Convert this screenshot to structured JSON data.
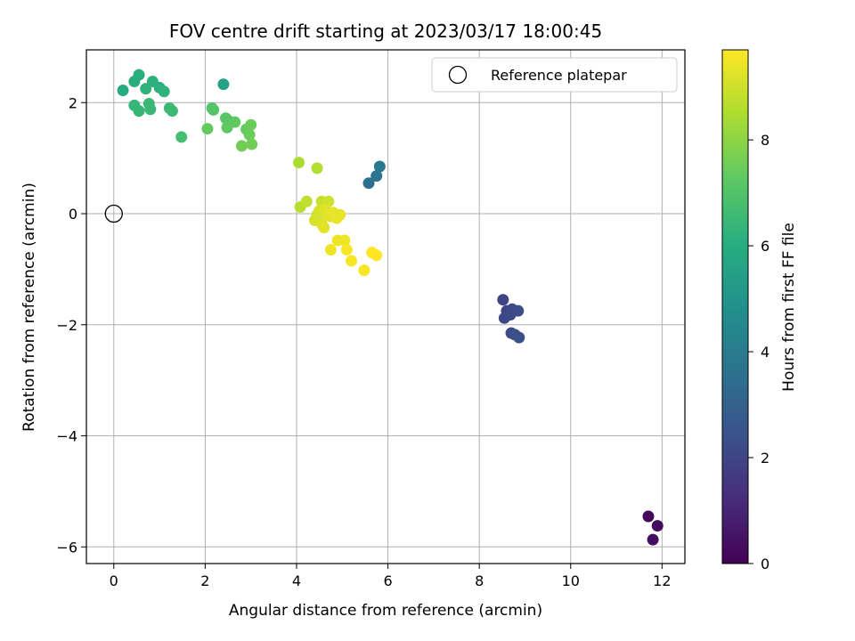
{
  "chart_data": {
    "type": "scatter",
    "title": "FOV centre drift starting at 2023/03/17 18:00:45",
    "xlabel": "Angular distance from reference (arcmin)",
    "ylabel": "Rotation from reference (arcmin)",
    "xlim": [
      -0.6,
      12.5
    ],
    "ylim": [
      -6.3,
      2.95
    ],
    "xticks": [
      0,
      2,
      4,
      6,
      8,
      10,
      12
    ],
    "yticks": [
      2,
      0,
      -2,
      -4,
      -6
    ],
    "xtick_labels": [
      "0",
      "2",
      "4",
      "6",
      "8",
      "10",
      "12"
    ],
    "ytick_labels": [
      "2",
      "0",
      "−2",
      "−4",
      "−6"
    ],
    "grid": true,
    "legend": {
      "position": "top-right",
      "label": "Reference platepar"
    },
    "reference_point": {
      "x": 0,
      "y": 0
    },
    "colorbar": {
      "label": "Hours from first FF file",
      "range": [
        0,
        9.7
      ],
      "ticks": [
        0,
        2,
        4,
        6,
        8
      ],
      "tick_labels": [
        "0",
        "2",
        "4",
        "6",
        "8"
      ],
      "colormap": "viridis"
    },
    "points": [
      {
        "x": 11.7,
        "y": -5.45,
        "c": 0.2
      },
      {
        "x": 11.9,
        "y": -5.62,
        "c": 0.3
      },
      {
        "x": 11.8,
        "y": -5.87,
        "c": 0.4
      },
      {
        "x": 8.52,
        "y": -1.55,
        "c": 2.0
      },
      {
        "x": 8.6,
        "y": -1.75,
        "c": 2.1
      },
      {
        "x": 8.55,
        "y": -1.88,
        "c": 2.1
      },
      {
        "x": 8.72,
        "y": -1.72,
        "c": 2.2
      },
      {
        "x": 8.68,
        "y": -1.82,
        "c": 2.2
      },
      {
        "x": 8.85,
        "y": -1.75,
        "c": 2.3
      },
      {
        "x": 8.7,
        "y": -2.15,
        "c": 2.3
      },
      {
        "x": 8.78,
        "y": -2.18,
        "c": 2.4
      },
      {
        "x": 8.87,
        "y": -2.23,
        "c": 2.4
      },
      {
        "x": 5.58,
        "y": 0.55,
        "c": 3.6
      },
      {
        "x": 5.75,
        "y": 0.68,
        "c": 3.8
      },
      {
        "x": 5.82,
        "y": 0.85,
        "c": 3.9
      },
      {
        "x": 2.4,
        "y": 2.33,
        "c": 5.6
      },
      {
        "x": 0.2,
        "y": 2.22,
        "c": 6.0
      },
      {
        "x": 0.45,
        "y": 2.38,
        "c": 6.1
      },
      {
        "x": 0.55,
        "y": 2.5,
        "c": 6.1
      },
      {
        "x": 0.85,
        "y": 2.38,
        "c": 6.2
      },
      {
        "x": 1.0,
        "y": 2.27,
        "c": 6.2
      },
      {
        "x": 1.1,
        "y": 2.2,
        "c": 6.3
      },
      {
        "x": 0.7,
        "y": 2.25,
        "c": 6.3
      },
      {
        "x": 0.45,
        "y": 1.95,
        "c": 6.4
      },
      {
        "x": 0.55,
        "y": 1.85,
        "c": 6.4
      },
      {
        "x": 0.77,
        "y": 1.98,
        "c": 6.5
      },
      {
        "x": 0.8,
        "y": 1.88,
        "c": 6.5
      },
      {
        "x": 1.22,
        "y": 1.9,
        "c": 6.6
      },
      {
        "x": 1.28,
        "y": 1.85,
        "c": 6.6
      },
      {
        "x": 1.48,
        "y": 1.38,
        "c": 6.8
      },
      {
        "x": 2.15,
        "y": 1.9,
        "c": 7.0
      },
      {
        "x": 2.18,
        "y": 1.87,
        "c": 7.1
      },
      {
        "x": 2.45,
        "y": 1.72,
        "c": 7.2
      },
      {
        "x": 2.5,
        "y": 1.68,
        "c": 7.2
      },
      {
        "x": 2.65,
        "y": 1.65,
        "c": 7.3
      },
      {
        "x": 2.48,
        "y": 1.55,
        "c": 7.3
      },
      {
        "x": 2.05,
        "y": 1.53,
        "c": 7.4
      },
      {
        "x": 2.9,
        "y": 1.52,
        "c": 7.4
      },
      {
        "x": 3.0,
        "y": 1.6,
        "c": 7.5
      },
      {
        "x": 2.97,
        "y": 1.42,
        "c": 7.5
      },
      {
        "x": 2.8,
        "y": 1.22,
        "c": 7.6
      },
      {
        "x": 3.02,
        "y": 1.25,
        "c": 7.6
      },
      {
        "x": 4.05,
        "y": 0.92,
        "c": 8.5
      },
      {
        "x": 4.45,
        "y": 0.82,
        "c": 8.6
      },
      {
        "x": 4.08,
        "y": 0.12,
        "c": 8.7
      },
      {
        "x": 4.22,
        "y": 0.22,
        "c": 8.8
      },
      {
        "x": 4.55,
        "y": 0.22,
        "c": 8.9
      },
      {
        "x": 4.7,
        "y": 0.22,
        "c": 9.0
      },
      {
        "x": 4.45,
        "y": -0.02,
        "c": 9.0
      },
      {
        "x": 4.5,
        "y": 0.05,
        "c": 9.1
      },
      {
        "x": 4.4,
        "y": -0.12,
        "c": 9.1
      },
      {
        "x": 4.62,
        "y": 0.08,
        "c": 9.2
      },
      {
        "x": 4.55,
        "y": -0.18,
        "c": 9.2
      },
      {
        "x": 4.6,
        "y": -0.25,
        "c": 9.3
      },
      {
        "x": 4.75,
        "y": -0.05,
        "c": 9.3
      },
      {
        "x": 4.68,
        "y": -0.02,
        "c": 9.3
      },
      {
        "x": 4.8,
        "y": 0.02,
        "c": 9.4
      },
      {
        "x": 4.88,
        "y": -0.08,
        "c": 9.4
      },
      {
        "x": 4.95,
        "y": -0.02,
        "c": 9.4
      },
      {
        "x": 4.9,
        "y": -0.48,
        "c": 9.5
      },
      {
        "x": 5.05,
        "y": -0.48,
        "c": 9.5
      },
      {
        "x": 4.75,
        "y": -0.65,
        "c": 9.5
      },
      {
        "x": 5.1,
        "y": -0.65,
        "c": 9.6
      },
      {
        "x": 5.2,
        "y": -0.85,
        "c": 9.6
      },
      {
        "x": 5.48,
        "y": -1.02,
        "c": 9.6
      },
      {
        "x": 5.65,
        "y": -0.7,
        "c": 9.7
      },
      {
        "x": 5.75,
        "y": -0.75,
        "c": 9.7
      }
    ]
  }
}
